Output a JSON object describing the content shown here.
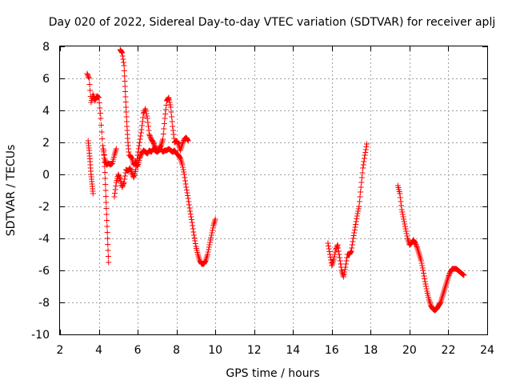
{
  "chart_data": {
    "type": "scatter",
    "title": "Day 020 of 2022, Sidereal Day-to-day VTEC variation (SDTVAR) for receiver aplj",
    "xlabel": "GPS time / hours",
    "ylabel": "SDTVAR / TECUs",
    "xlim": [
      2,
      24
    ],
    "ylim": [
      -10,
      8
    ],
    "x_ticks": [
      "2",
      "4",
      "6",
      "8",
      "10",
      "12",
      "14",
      "16",
      "18",
      "20",
      "22",
      "24"
    ],
    "y_ticks": [
      "8",
      "6",
      "4",
      "2",
      "0",
      "-2",
      "-4",
      "-6",
      "-8",
      "-10"
    ],
    "grid": true,
    "marker": "+",
    "color": "#ff0000",
    "series": [
      {
        "name": "s1",
        "points": [
          [
            3.4,
            6.3
          ],
          [
            3.5,
            6.0
          ],
          [
            3.6,
            4.5
          ],
          [
            3.7,
            5.0
          ],
          [
            3.8,
            4.6
          ],
          [
            3.9,
            4.9
          ],
          [
            4.0,
            4.8
          ],
          [
            4.1,
            3.5
          ],
          [
            4.2,
            1.8
          ],
          [
            4.3,
            1.0
          ],
          [
            4.4,
            0.6
          ],
          [
            4.5,
            0.7
          ],
          [
            4.6,
            0.6
          ],
          [
            4.7,
            0.7
          ],
          [
            4.8,
            1.2
          ],
          [
            4.9,
            1.6
          ]
        ]
      },
      {
        "name": "s2",
        "points": [
          [
            3.45,
            2.1
          ],
          [
            3.5,
            1.5
          ],
          [
            3.55,
            0.8
          ],
          [
            3.6,
            0.0
          ],
          [
            3.65,
            -0.6
          ],
          [
            3.7,
            -1.2
          ]
        ]
      },
      {
        "name": "s3",
        "points": [
          [
            4.25,
            1.5
          ],
          [
            4.3,
            0.5
          ],
          [
            4.35,
            -1.0
          ],
          [
            4.4,
            -2.5
          ],
          [
            4.45,
            -4.0
          ],
          [
            4.5,
            -5.5
          ]
        ]
      },
      {
        "name": "s4",
        "points": [
          [
            5.1,
            7.8
          ],
          [
            5.2,
            7.6
          ],
          [
            5.3,
            6.8
          ],
          [
            5.35,
            5.5
          ],
          [
            5.4,
            4.2
          ],
          [
            5.45,
            3.0
          ],
          [
            5.5,
            2.0
          ],
          [
            5.55,
            1.2
          ]
        ]
      },
      {
        "name": "s5",
        "points": [
          [
            4.8,
            -1.4
          ],
          [
            4.9,
            -0.5
          ],
          [
            5.0,
            0.0
          ],
          [
            5.1,
            -0.3
          ],
          [
            5.2,
            -0.8
          ],
          [
            5.3,
            -0.5
          ],
          [
            5.4,
            0.3
          ],
          [
            5.5,
            0.2
          ],
          [
            5.6,
            0.4
          ],
          [
            5.7,
            0.1
          ],
          [
            5.8,
            -0.2
          ],
          [
            5.9,
            0.3
          ],
          [
            6.0,
            1.2
          ],
          [
            6.1,
            2.0
          ],
          [
            6.2,
            2.8
          ],
          [
            6.3,
            3.8
          ],
          [
            6.4,
            4.1
          ],
          [
            6.5,
            3.5
          ],
          [
            6.6,
            2.5
          ],
          [
            6.7,
            2.2
          ],
          [
            6.8,
            2.0
          ],
          [
            6.9,
            1.7
          ],
          [
            7.0,
            1.5
          ],
          [
            7.1,
            1.6
          ],
          [
            7.2,
            1.8
          ],
          [
            7.3,
            2.2
          ],
          [
            7.4,
            3.5
          ],
          [
            7.5,
            4.6
          ],
          [
            7.6,
            4.8
          ],
          [
            7.7,
            4.2
          ],
          [
            7.8,
            3.0
          ],
          [
            7.9,
            2.0
          ],
          [
            8.0,
            2.1
          ],
          [
            8.1,
            1.9
          ],
          [
            8.2,
            1.5
          ],
          [
            8.3,
            1.9
          ],
          [
            8.4,
            2.2
          ],
          [
            8.5,
            2.3
          ],
          [
            8.6,
            2.1
          ]
        ]
      },
      {
        "name": "s6",
        "points": [
          [
            5.6,
            1.2
          ],
          [
            5.7,
            1.0
          ],
          [
            5.8,
            0.6
          ],
          [
            5.9,
            0.8
          ],
          [
            6.0,
            0.5
          ],
          [
            6.1,
            1.0
          ],
          [
            6.2,
            1.3
          ],
          [
            6.3,
            1.5
          ],
          [
            6.4,
            1.4
          ],
          [
            6.5,
            1.3
          ],
          [
            6.6,
            1.5
          ],
          [
            6.7,
            1.4
          ],
          [
            6.8,
            1.6
          ],
          [
            6.9,
            1.5
          ],
          [
            7.0,
            1.4
          ],
          [
            7.1,
            1.5
          ],
          [
            7.2,
            1.6
          ],
          [
            7.3,
            1.4
          ],
          [
            7.4,
            1.5
          ],
          [
            7.5,
            1.5
          ],
          [
            7.6,
            1.6
          ],
          [
            7.7,
            1.5
          ],
          [
            7.8,
            1.4
          ],
          [
            7.9,
            1.5
          ],
          [
            8.0,
            1.3
          ],
          [
            8.1,
            1.2
          ],
          [
            8.2,
            1.0
          ],
          [
            8.3,
            0.6
          ],
          [
            8.4,
            0.0
          ],
          [
            8.5,
            -0.8
          ],
          [
            8.6,
            -1.5
          ],
          [
            8.7,
            -2.3
          ],
          [
            8.8,
            -3.0
          ],
          [
            8.9,
            -3.8
          ],
          [
            9.0,
            -4.5
          ],
          [
            9.1,
            -5.0
          ],
          [
            9.2,
            -5.4
          ],
          [
            9.3,
            -5.6
          ],
          [
            9.4,
            -5.6
          ],
          [
            9.5,
            -5.4
          ],
          [
            9.6,
            -5.0
          ],
          [
            9.7,
            -4.4
          ],
          [
            9.8,
            -3.8
          ],
          [
            9.9,
            -3.2
          ],
          [
            10.0,
            -2.8
          ]
        ]
      },
      {
        "name": "s7",
        "points": [
          [
            15.8,
            -4.3
          ],
          [
            15.9,
            -5.0
          ],
          [
            16.0,
            -5.7
          ],
          [
            16.1,
            -5.3
          ],
          [
            16.2,
            -4.7
          ],
          [
            16.3,
            -4.4
          ],
          [
            16.4,
            -5.2
          ],
          [
            16.5,
            -6.0
          ],
          [
            16.6,
            -6.4
          ],
          [
            16.7,
            -5.8
          ],
          [
            16.8,
            -5.0
          ],
          [
            16.9,
            -5.0
          ],
          [
            17.0,
            -4.8
          ],
          [
            17.1,
            -4.0
          ],
          [
            17.2,
            -3.3
          ],
          [
            17.3,
            -2.6
          ],
          [
            17.4,
            -2.0
          ],
          [
            17.5,
            -0.8
          ],
          [
            17.6,
            0.4
          ],
          [
            17.7,
            1.2
          ],
          [
            17.8,
            1.9
          ]
        ]
      },
      {
        "name": "s8",
        "points": [
          [
            19.4,
            -0.7
          ],
          [
            19.5,
            -1.2
          ],
          [
            19.6,
            -2.2
          ],
          [
            19.7,
            -2.8
          ],
          [
            19.8,
            -3.4
          ],
          [
            19.9,
            -4.0
          ],
          [
            20.0,
            -4.4
          ],
          [
            20.1,
            -4.3
          ],
          [
            20.2,
            -4.1
          ],
          [
            20.3,
            -4.3
          ],
          [
            20.4,
            -4.6
          ],
          [
            20.5,
            -5.0
          ],
          [
            20.6,
            -5.4
          ],
          [
            20.7,
            -6.0
          ],
          [
            20.8,
            -6.7
          ],
          [
            20.9,
            -7.3
          ],
          [
            21.0,
            -7.8
          ],
          [
            21.1,
            -8.2
          ],
          [
            21.2,
            -8.4
          ],
          [
            21.3,
            -8.5
          ],
          [
            21.4,
            -8.4
          ],
          [
            21.5,
            -8.2
          ],
          [
            21.6,
            -8.0
          ],
          [
            21.7,
            -7.6
          ],
          [
            21.8,
            -7.2
          ],
          [
            21.9,
            -6.8
          ],
          [
            22.0,
            -6.4
          ],
          [
            22.1,
            -6.1
          ],
          [
            22.2,
            -5.9
          ],
          [
            22.3,
            -5.9
          ],
          [
            22.4,
            -5.9
          ],
          [
            22.5,
            -6.0
          ],
          [
            22.6,
            -6.1
          ],
          [
            22.7,
            -6.2
          ],
          [
            22.8,
            -6.3
          ]
        ]
      }
    ]
  }
}
